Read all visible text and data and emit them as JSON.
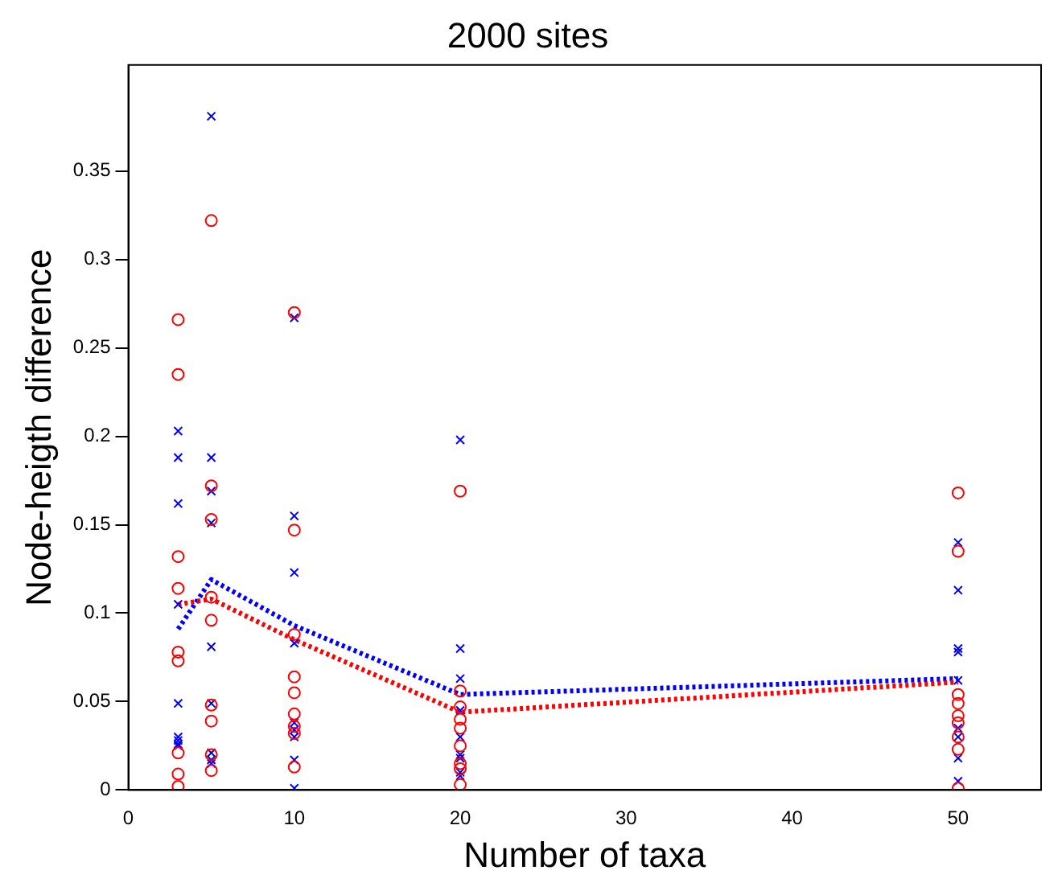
{
  "chart_data": {
    "type": "scatter",
    "title": "2000 sites",
    "xlabel": "Number of taxa",
    "ylabel": "Node-heigth difference",
    "xlim": [
      0,
      55
    ],
    "xticks": [
      0,
      10,
      20,
      30,
      40,
      50
    ],
    "ylim": [
      0,
      0.41
    ],
    "yticks": [
      0,
      0.05,
      0.1,
      0.15,
      0.2,
      0.25,
      0.3,
      0.35
    ],
    "grid": false,
    "legend": false,
    "series": [
      {
        "marker": "circle",
        "color": "#ff0000",
        "x": [
          3,
          3,
          3,
          3,
          3,
          3,
          3,
          3,
          3,
          5,
          5,
          5,
          5,
          5,
          5,
          5,
          5,
          5,
          10,
          10,
          10,
          10,
          10,
          10,
          10,
          10,
          10,
          20,
          20,
          20,
          20,
          20,
          20,
          20,
          20,
          20,
          50,
          50,
          50,
          50,
          50,
          50,
          50,
          50,
          50
        ],
        "values": [
          0.266,
          0.235,
          0.132,
          0.114,
          0.078,
          0.073,
          0.021,
          0.009,
          0.002,
          0.322,
          0.172,
          0.153,
          0.109,
          0.096,
          0.048,
          0.039,
          0.02,
          0.011,
          0.27,
          0.147,
          0.088,
          0.064,
          0.055,
          0.043,
          0.036,
          0.032,
          0.013,
          0.169,
          0.056,
          0.047,
          0.04,
          0.035,
          0.025,
          0.015,
          0.012,
          0.003,
          0.168,
          0.135,
          0.054,
          0.049,
          0.042,
          0.038,
          0.03,
          0.023,
          0.001
        ]
      },
      {
        "marker": "cross",
        "color": "#0000ff",
        "x": [
          3,
          3,
          3,
          3,
          3,
          3,
          3,
          3,
          3,
          5,
          5,
          5,
          5,
          5,
          5,
          5,
          5,
          5,
          10,
          10,
          10,
          10,
          10,
          10,
          10,
          10,
          10,
          20,
          20,
          20,
          20,
          20,
          20,
          20,
          20,
          20,
          50,
          50,
          50,
          50,
          50,
          50,
          50,
          50,
          50
        ],
        "values": [
          0.203,
          0.188,
          0.162,
          0.105,
          0.049,
          0.03,
          0.028,
          0.026,
          0.025,
          0.381,
          0.188,
          0.169,
          0.151,
          0.081,
          0.049,
          0.021,
          0.017,
          0.015,
          0.267,
          0.155,
          0.123,
          0.083,
          0.038,
          0.034,
          0.03,
          0.017,
          0.001,
          0.198,
          0.08,
          0.063,
          0.045,
          0.03,
          0.02,
          0.018,
          0.01,
          0.008,
          0.14,
          0.113,
          0.08,
          0.078,
          0.062,
          0.035,
          0.03,
          0.018,
          0.005
        ]
      },
      {
        "type": "line",
        "marker": "none",
        "line_style": "dotted",
        "color": "#ff0000",
        "x": [
          3,
          5,
          10,
          20,
          50
        ],
        "values": [
          0.105,
          0.108,
          0.085,
          0.044,
          0.061
        ]
      },
      {
        "type": "line",
        "marker": "none",
        "line_style": "dotted",
        "color": "#0000ff",
        "x": [
          3,
          5,
          10,
          20,
          50
        ],
        "values": [
          0.091,
          0.119,
          0.093,
          0.054,
          0.063
        ]
      }
    ]
  }
}
